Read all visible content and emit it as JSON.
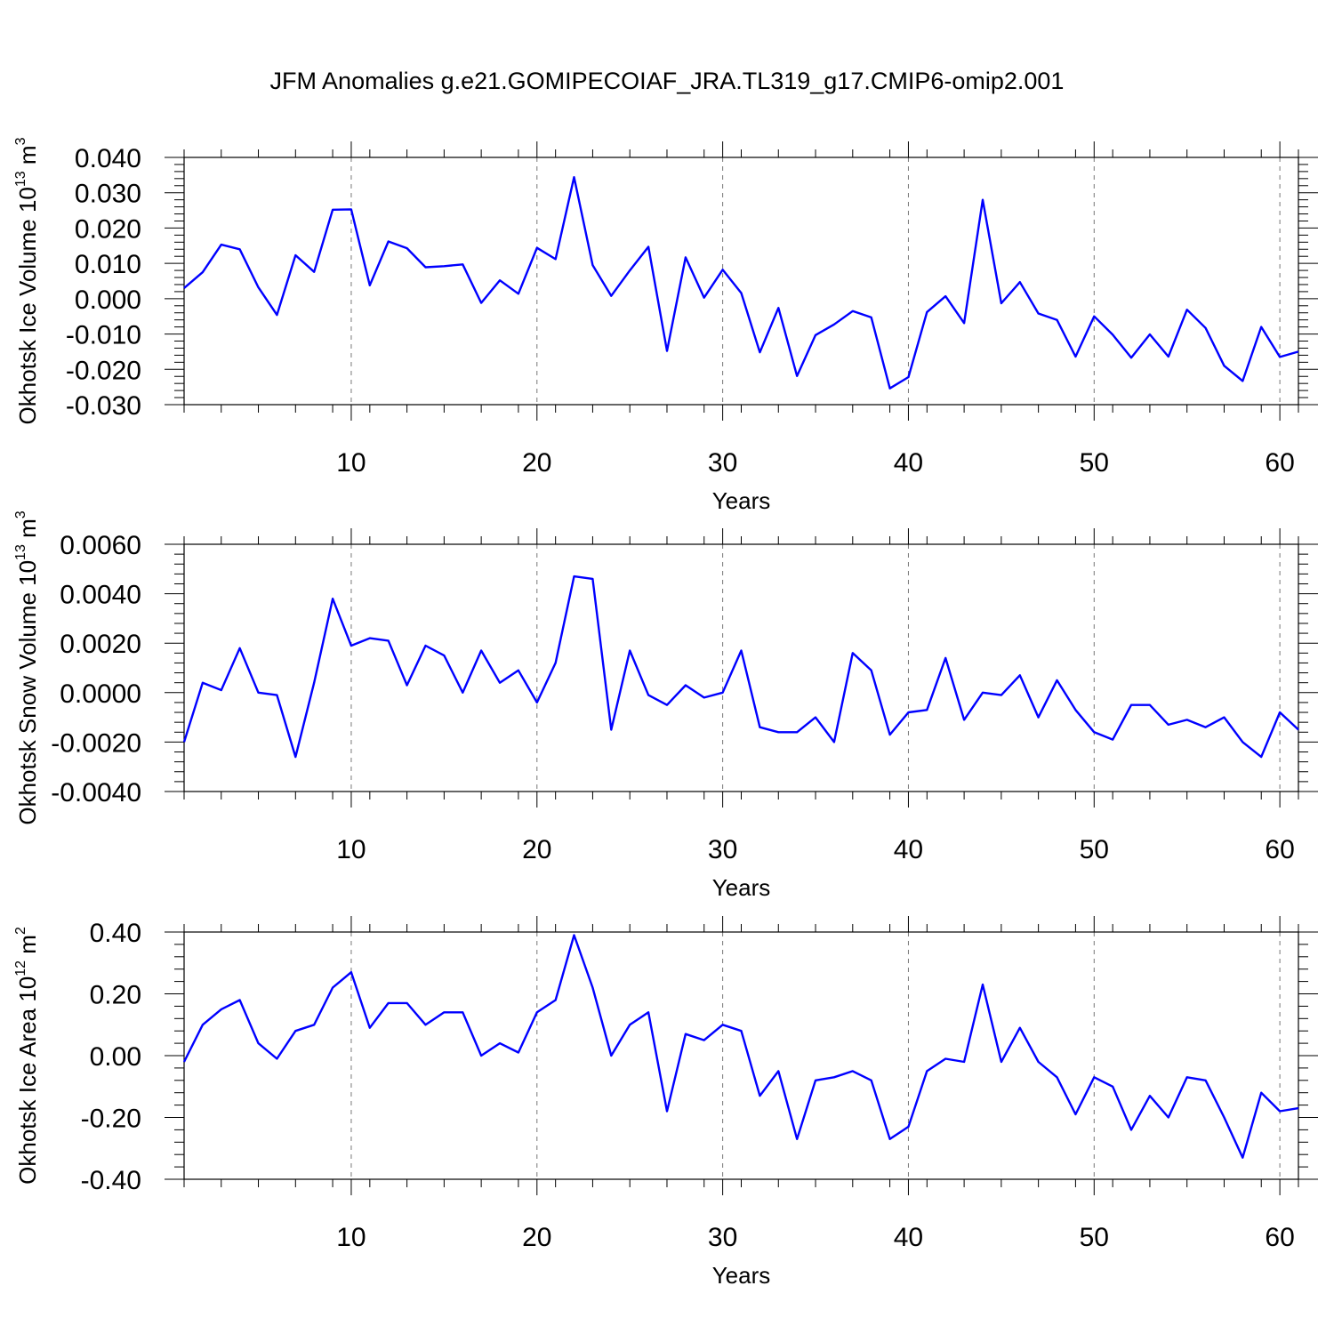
{
  "title": "JFM Anomalies g.e21.GOMIPECOIAF_JRA.TL319_g17.CMIP6-omip2.001",
  "colors": {
    "series": "#0000ff",
    "axis": "#000000",
    "grid": "#777777"
  },
  "chart_data": [
    {
      "type": "line",
      "ylabel_main": "Okhotsk Ice Volume 10",
      "ylabel_exp": "13",
      "ylabel_unit": " m",
      "ylabel_unit_exp": "3",
      "xlabel": "Years",
      "xlim": [
        1,
        61
      ],
      "ylim": [
        -0.03,
        0.04
      ],
      "xticks": [
        10,
        20,
        30,
        40,
        50,
        60
      ],
      "xtick_labels": [
        "10",
        "20",
        "30",
        "40",
        "50",
        "60"
      ],
      "yticks": [
        -0.03,
        -0.02,
        -0.01,
        0.0,
        0.01,
        0.02,
        0.03,
        0.04
      ],
      "ytick_labels": [
        "-0.030",
        "-0.020",
        "-0.010",
        "0.000",
        "0.010",
        "0.020",
        "0.030",
        "0.040"
      ],
      "grid": "vertical dashed at major x ticks",
      "x": [
        1,
        2,
        3,
        4,
        5,
        6,
        7,
        8,
        9,
        10,
        11,
        12,
        13,
        14,
        15,
        16,
        17,
        18,
        19,
        20,
        21,
        22,
        23,
        24,
        25,
        26,
        27,
        28,
        29,
        30,
        31,
        32,
        33,
        34,
        35,
        36,
        37,
        38,
        39,
        40,
        41,
        42,
        43,
        44,
        45,
        46,
        47,
        48,
        49,
        50,
        51,
        52,
        53,
        54,
        55,
        56,
        57,
        58,
        59,
        60,
        61
      ],
      "y": [
        0.003,
        0.0075,
        0.0153,
        0.014,
        0.0032,
        -0.0046,
        0.0123,
        0.0076,
        0.0252,
        0.0253,
        0.0038,
        0.0162,
        0.0143,
        0.0089,
        0.0092,
        0.0097,
        -0.0012,
        0.0052,
        0.0014,
        0.0144,
        0.0112,
        0.0344,
        0.0095,
        0.0008,
        0.008,
        0.0147,
        -0.0148,
        0.0117,
        0.0003,
        0.0082,
        0.0016,
        -0.0152,
        -0.0026,
        -0.0219,
        -0.0103,
        -0.0073,
        -0.0035,
        -0.0053,
        -0.0254,
        -0.0222,
        -0.0038,
        0.0007,
        -0.0069,
        0.028,
        -0.0013,
        0.0047,
        -0.0042,
        -0.006,
        -0.0164,
        -0.005,
        -0.0102,
        -0.0167,
        -0.0101,
        -0.0164,
        -0.0031,
        -0.0083,
        -0.019,
        -0.0233,
        -0.008,
        -0.0165,
        -0.015
      ]
    },
    {
      "type": "line",
      "ylabel_main": "Okhotsk Snow Volume 10",
      "ylabel_exp": "13",
      "ylabel_unit": " m",
      "ylabel_unit_exp": "3",
      "xlabel": "Years",
      "xlim": [
        1,
        61
      ],
      "ylim": [
        -0.004,
        0.006
      ],
      "xticks": [
        10,
        20,
        30,
        40,
        50,
        60
      ],
      "xtick_labels": [
        "10",
        "20",
        "30",
        "40",
        "50",
        "60"
      ],
      "yticks": [
        -0.004,
        -0.002,
        0.0,
        0.002,
        0.004,
        0.006
      ],
      "ytick_labels": [
        "-0.0040",
        "-0.0020",
        "0.0000",
        "0.0020",
        "0.0040",
        "0.0060"
      ],
      "grid": "vertical dashed at major x ticks",
      "x": [
        1,
        2,
        3,
        4,
        5,
        6,
        7,
        8,
        9,
        10,
        11,
        12,
        13,
        14,
        15,
        16,
        17,
        18,
        19,
        20,
        21,
        22,
        23,
        24,
        25,
        26,
        27,
        28,
        29,
        30,
        31,
        32,
        33,
        34,
        35,
        36,
        37,
        38,
        39,
        40,
        41,
        42,
        43,
        44,
        45,
        46,
        47,
        48,
        49,
        50,
        51,
        52,
        53,
        54,
        55,
        56,
        57,
        58,
        59,
        60,
        61
      ],
      "y": [
        -0.002,
        0.0004,
        0.0001,
        0.0018,
        0.0,
        -0.0001,
        -0.0026,
        0.0004,
        0.0038,
        0.0019,
        0.0022,
        0.0021,
        0.0003,
        0.0019,
        0.0015,
        0.0,
        0.0017,
        0.0004,
        0.0009,
        -0.0004,
        0.0012,
        0.0047,
        0.0046,
        -0.0015,
        0.0017,
        -0.0001,
        -0.0005,
        0.0003,
        -0.0002,
        0.0,
        0.0017,
        -0.0014,
        -0.0016,
        -0.0016,
        -0.001,
        -0.002,
        0.0016,
        0.0009,
        -0.0017,
        -0.0008,
        -0.0007,
        0.0014,
        -0.0011,
        0.0,
        -0.0001,
        0.0007,
        -0.001,
        0.0005,
        -0.0007,
        -0.0016,
        -0.0019,
        -0.0005,
        -0.0005,
        -0.0013,
        -0.0011,
        -0.0014,
        -0.001,
        -0.002,
        -0.0026,
        -0.0008,
        -0.0015
      ]
    },
    {
      "type": "line",
      "ylabel_main": "Okhotsk Ice Area 10",
      "ylabel_exp": "12",
      "ylabel_unit": " m",
      "ylabel_unit_exp": "2",
      "xlabel": "Years",
      "xlim": [
        1,
        61
      ],
      "ylim": [
        -0.4,
        0.4
      ],
      "xticks": [
        10,
        20,
        30,
        40,
        50,
        60
      ],
      "xtick_labels": [
        "10",
        "20",
        "30",
        "40",
        "50",
        "60"
      ],
      "yticks": [
        -0.4,
        -0.2,
        0.0,
        0.2,
        0.4
      ],
      "ytick_labels": [
        "-0.40",
        "-0.20",
        "0.00",
        "0.20",
        "0.40"
      ],
      "grid": "vertical dashed at major x ticks",
      "x": [
        1,
        2,
        3,
        4,
        5,
        6,
        7,
        8,
        9,
        10,
        11,
        12,
        13,
        14,
        15,
        16,
        17,
        18,
        19,
        20,
        21,
        22,
        23,
        24,
        25,
        26,
        27,
        28,
        29,
        30,
        31,
        32,
        33,
        34,
        35,
        36,
        37,
        38,
        39,
        40,
        41,
        42,
        43,
        44,
        45,
        46,
        47,
        48,
        49,
        50,
        51,
        52,
        53,
        54,
        55,
        56,
        57,
        58,
        59,
        60,
        61
      ],
      "y": [
        -0.02,
        0.1,
        0.15,
        0.18,
        0.04,
        -0.01,
        0.08,
        0.1,
        0.22,
        0.27,
        0.09,
        0.17,
        0.17,
        0.1,
        0.14,
        0.14,
        0.0,
        0.04,
        0.01,
        0.14,
        0.18,
        0.39,
        0.22,
        0.0,
        0.1,
        0.14,
        -0.18,
        0.07,
        0.05,
        0.1,
        0.08,
        -0.13,
        -0.05,
        -0.27,
        -0.08,
        -0.07,
        -0.05,
        -0.08,
        -0.27,
        -0.23,
        -0.05,
        -0.01,
        -0.02,
        0.23,
        -0.02,
        0.09,
        -0.02,
        -0.07,
        -0.19,
        -0.07,
        -0.1,
        -0.24,
        -0.13,
        -0.2,
        -0.07,
        -0.08,
        -0.2,
        -0.33,
        -0.12,
        -0.18,
        -0.17
      ]
    }
  ]
}
